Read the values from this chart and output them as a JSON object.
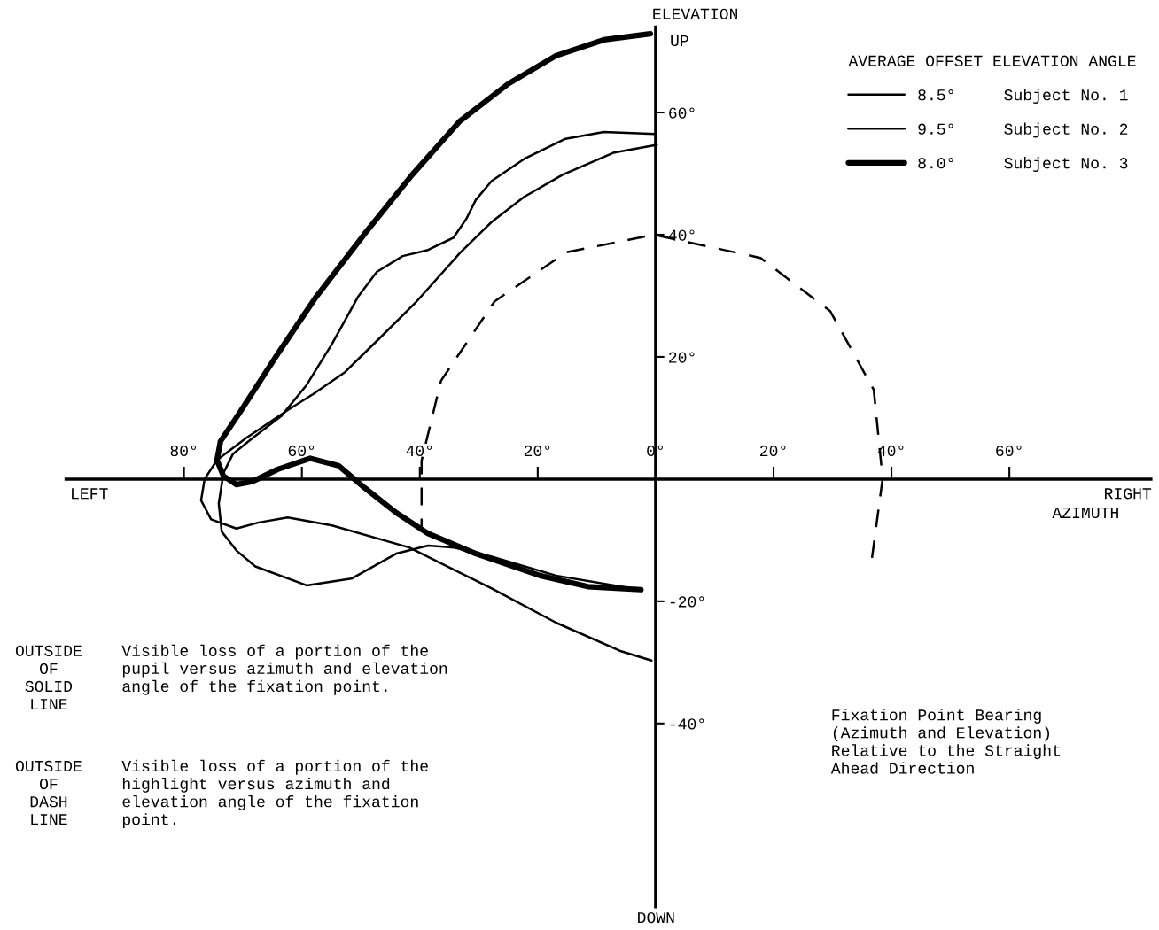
{
  "chart_data": {
    "type": "line",
    "ylabel": "ELEVATION",
    "xlabel": "AZIMUTH",
    "legend_title": "AVERAGE OFFSET ELEVATION ANGLE",
    "legend": "top right",
    "grid": false,
    "marker": "none",
    "xlim": [
      -100,
      84
    ],
    "ylim": [
      -70,
      74
    ],
    "xticks": [
      {
        "value": -80,
        "label": "80°"
      },
      {
        "value": -60,
        "label": "60°"
      },
      {
        "value": -40,
        "label": "40°"
      },
      {
        "value": -20,
        "label": "20°"
      },
      {
        "value": 0,
        "label": "0°"
      },
      {
        "value": 20,
        "label": "20°"
      },
      {
        "value": 40,
        "label": "40°"
      },
      {
        "value": 60,
        "label": "60°"
      }
    ],
    "yticks": [
      {
        "value": 60,
        "label": "60°"
      },
      {
        "value": 40,
        "label": "40°"
      },
      {
        "value": 20,
        "label": "20°"
      },
      {
        "value": -20,
        "label": "-20°"
      },
      {
        "value": -40,
        "label": "-40°"
      }
    ],
    "series": [
      {
        "name": "8.5°     Subject No. 1",
        "color": "#000000",
        "line_style": "solid",
        "x": [
          -0.1,
          -8.8,
          -15.3,
          -22.3,
          -27.8,
          -30.5,
          -32.1,
          -34.3,
          -38.6,
          -42.9,
          -47.3,
          -50.5,
          -54.9,
          -59.2,
          -63.5,
          -68.4,
          -71.7,
          -73.3,
          -74.1,
          -73.6,
          -71.1,
          -67.9,
          -59.2,
          -51.6,
          -44.0,
          -38.6,
          -34.3,
          -27.8,
          -16.9,
          -2.8
        ],
        "values": [
          56.5,
          56.8,
          55.7,
          52.4,
          48.8,
          45.7,
          42.6,
          39.5,
          37.5,
          36.5,
          33.9,
          29.8,
          22.1,
          15.4,
          10.3,
          6.7,
          4.1,
          1.0,
          -4.0,
          -8.6,
          -11.7,
          -14.3,
          -17.4,
          -16.3,
          -12.2,
          -10.9,
          -11.2,
          -12.7,
          -15.8,
          -18.1
        ]
      },
      {
        "name": "9.5°     Subject No. 2",
        "color": "#000000",
        "line_style": "solid",
        "x": [
          0.2,
          -7.2,
          -15.8,
          -22.3,
          -27.8,
          -33.2,
          -40.8,
          -47.3,
          -52.7,
          -58.1,
          -62.4,
          -69.5,
          -74.4,
          -76.5,
          -77.1,
          -75.4,
          -71.1,
          -67.3,
          -62.4,
          -54.9,
          -41.8,
          -27.8,
          -16.9,
          -6.1,
          -0.7
        ],
        "values": [
          54.7,
          53.4,
          49.8,
          46.2,
          42.1,
          37.0,
          28.8,
          22.6,
          17.5,
          13.9,
          11.3,
          6.7,
          3.1,
          0.0,
          -3.5,
          -6.6,
          -8.1,
          -7.1,
          -6.3,
          -7.6,
          -11.2,
          -17.9,
          -23.5,
          -28.1,
          -29.7
        ]
      },
      {
        "name": "8.0°     Subject No. 3",
        "color": "#000000",
        "line_style": "solid",
        "x": [
          -0.9,
          -8.8,
          -16.9,
          -25.0,
          -33.2,
          -41.3,
          -49.4,
          -57.6,
          -64.1,
          -70.6,
          -73.8,
          -74.4,
          -73.3,
          -71.1,
          -68.4,
          -64.1,
          -58.6,
          -53.8,
          -49.4,
          -44.0,
          -38.6,
          -30.5,
          -19.6,
          -11.5,
          -2.5
        ],
        "values": [
          72.9,
          71.9,
          69.3,
          64.7,
          58.6,
          49.8,
          40.1,
          29.8,
          20.5,
          10.8,
          6.2,
          3.1,
          0.5,
          -0.9,
          -0.4,
          1.6,
          3.4,
          2.2,
          -1.4,
          -5.5,
          -8.9,
          -12.2,
          -15.8,
          -17.6,
          -18.1
        ]
      },
      {
        "color": "#000000",
        "line_style": "dashed",
        "x": [
          36.7,
          38.5,
          37.0,
          29.6,
          17.8,
          -0.3,
          -15.2,
          -27.3,
          -36.4,
          -39.7,
          -39.7
        ],
        "values": [
          -12.9,
          0.1,
          14.6,
          27.5,
          36.2,
          40.0,
          37.1,
          29.1,
          16.1,
          3.0,
          -8.6
        ]
      }
    ],
    "annotations": [
      "UP",
      "DOWN",
      "LEFT",
      "RIGHT",
      "OUTSIDE\nOF\nSOLID\nLINE",
      "Visible loss of a portion of the\npupil versus azimuth and elevation\nangle of the fixation point.",
      "OUTSIDE\nOF\nDASH\nLINE",
      "Visible loss of a portion of the\nhighlight versus azimuth and\nelevation angle of the fixation\npoint.",
      "Fixation Point Bearing\n(Azimuth and Elevation)\nRelative to the Straight\nAhead Direction"
    ]
  }
}
